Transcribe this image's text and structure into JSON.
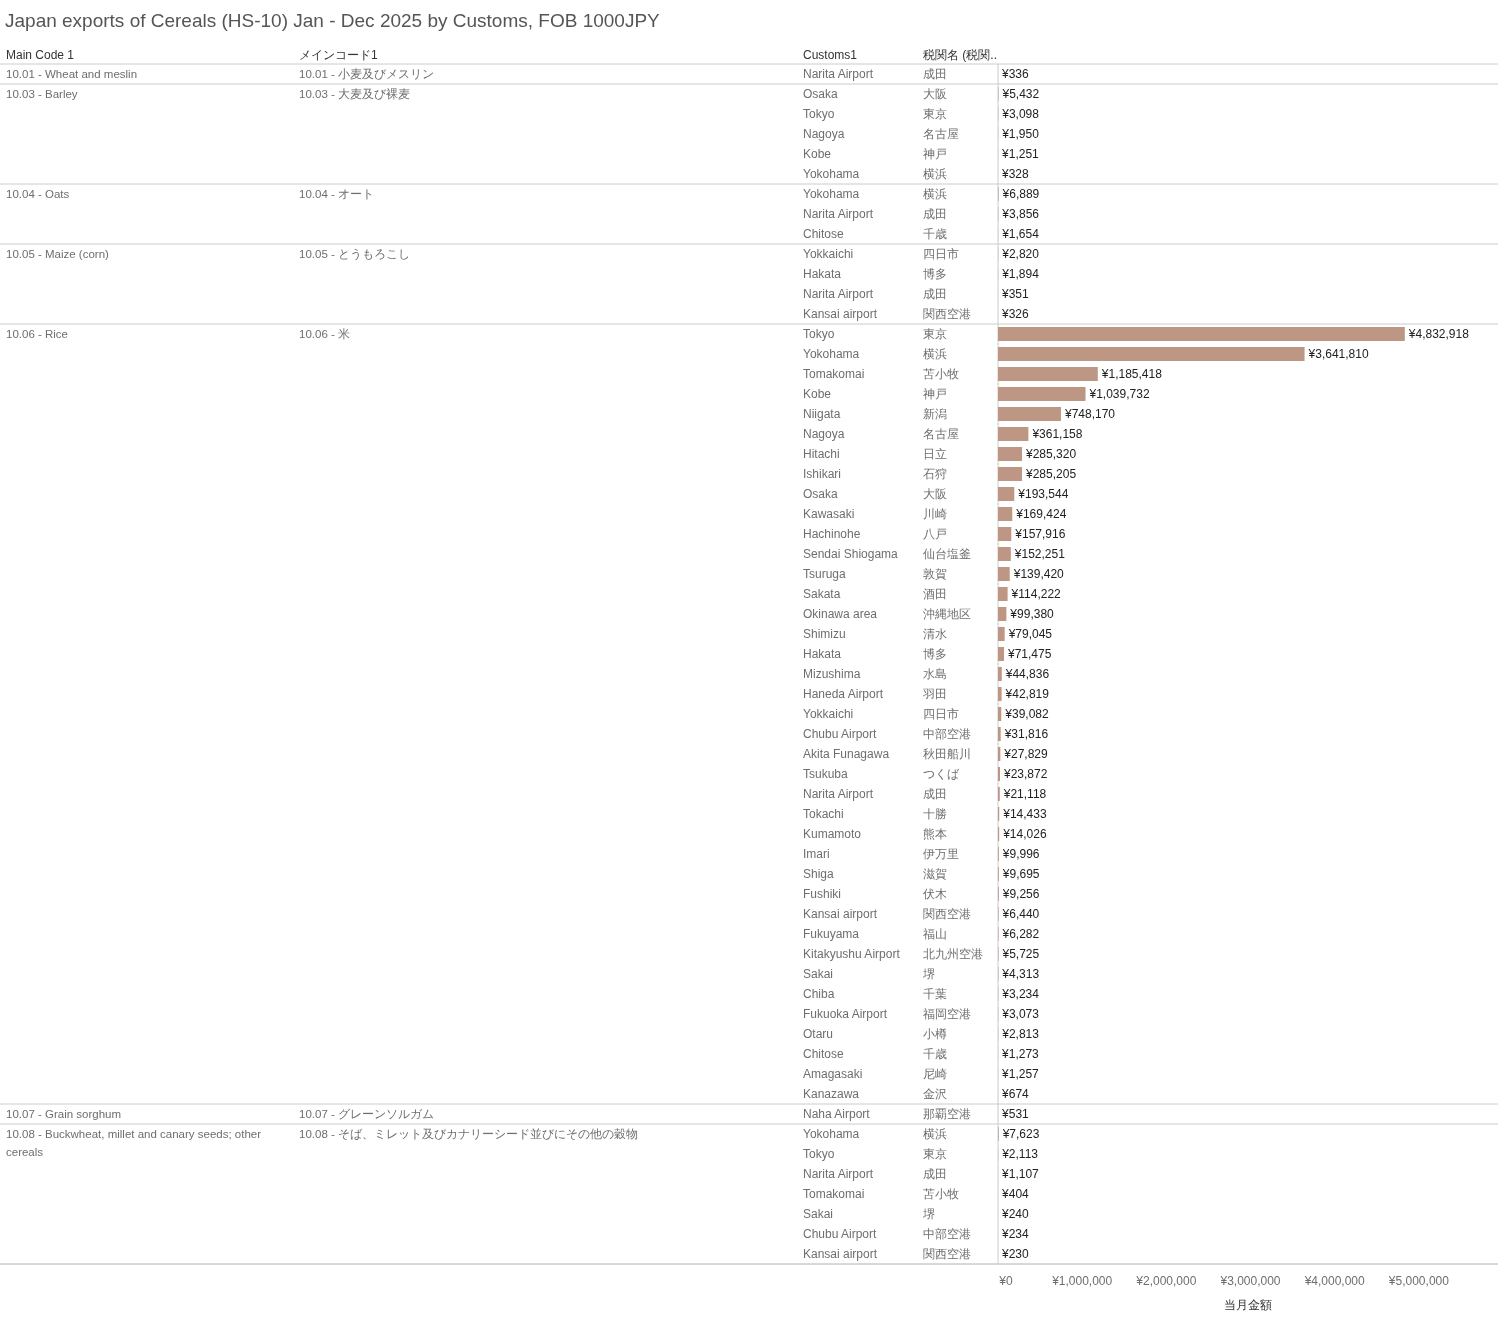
{
  "chart_data": {
    "type": "bar",
    "orientation": "horizontal",
    "title": "Japan exports of Cereals (HS-10) Jan - Dec 2025 by Customs, FOB 1000JPY",
    "xlabel": "当月金額",
    "grid": false,
    "categories": [
      "Narita Airport",
      "Osaka",
      "Tokyo",
      "Nagoya",
      "Kobe",
      "Yokohama",
      "Yokohama",
      "Narita Airport",
      "Chitose",
      "Yokkaichi",
      "Hakata",
      "Narita Airport",
      "Kansai airport",
      "Tokyo",
      "Yokohama",
      "Tomakomai",
      "Kobe",
      "Niigata",
      "Nagoya",
      "Hitachi",
      "Ishikari",
      "Osaka",
      "Kawasaki",
      "Hachinohe",
      "Sendai Shiogama",
      "Tsuruga",
      "Sakata",
      "Okinawa area",
      "Shimizu",
      "Hakata",
      "Mizushima",
      "Haneda Airport",
      "Yokkaichi",
      "Chubu Airport",
      "Akita Funagawa",
      "Tsukuba",
      "Narita Airport",
      "Tokachi",
      "Kumamoto",
      "Imari",
      "Shiga",
      "Fushiki",
      "Kansai airport",
      "Fukuyama",
      "Kitakyushu Airport",
      "Sakai",
      "Chiba",
      "Fukuoka Airport",
      "Otaru",
      "Chitose",
      "Amagasaki",
      "Kanazawa",
      "Naha Airport",
      "Yokohama",
      "Tokyo",
      "Narita Airport",
      "Tomakomai",
      "Sakai",
      "Chubu Airport",
      "Kansai airport"
    ],
    "y2_categories": [
      "成田",
      "大阪",
      "東京",
      "名古屋",
      "神戸",
      "横浜",
      "横浜",
      "成田",
      "千歳",
      "四日市",
      "博多",
      "成田",
      "関西空港",
      "東京",
      "横浜",
      "苫小牧",
      "神戸",
      "新潟",
      "名古屋",
      "日立",
      "石狩",
      "大阪",
      "川崎",
      "八戸",
      "仙台塩釜",
      "敦賀",
      "酒田",
      "沖縄地区",
      "清水",
      "博多",
      "水島",
      "羽田",
      "四日市",
      "中部空港",
      "秋田船川",
      "つくば",
      "成田",
      "十勝",
      "熊本",
      "伊万里",
      "滋賀",
      "伏木",
      "関西空港",
      "福山",
      "北九州空港",
      "堺",
      "千葉",
      "福岡空港",
      "小樽",
      "千歳",
      "尼崎",
      "金沢",
      "那覇空港",
      "横浜",
      "東京",
      "成田",
      "苫小牧",
      "堺",
      "中部空港",
      "関西空港"
    ],
    "annotations": [
      "Main Code 1",
      "メインコード1",
      "Customs1",
      "税関名 (税関..",
      "10.01 - Wheat and meslin",
      "10.01 - 小麦及びメスリン",
      "10.03 - Barley",
      "10.03 - 大麦及び裸麦",
      "10.04 - Oats",
      "10.04 - オート",
      "10.05 - Maize (corn)",
      "10.05 - とうもろこし",
      "10.06 - Rice",
      "10.06 - 米",
      "10.07 - Grain sorghum",
      "10.07 - グレーンソルガム",
      "10.08 - Buckwheat, millet and canary seeds; other cereals",
      "10.08 - そば、ミレット及びカナリーシード並びにその他の穀物"
    ],
    "xlim": [
      0,
      5940000
    ],
    "xticks": [
      {
        "value": 0,
        "label": "¥0"
      },
      {
        "value": 1000000,
        "label": "¥1,000,000"
      },
      {
        "value": 2000000,
        "label": "¥2,000,000"
      },
      {
        "value": 3000000,
        "label": "¥3,000,000"
      },
      {
        "value": 4000000,
        "label": "¥4,000,000"
      },
      {
        "value": 5000000,
        "label": "¥5,000,000"
      }
    ],
    "series": [
      {
        "color": "#bd9784",
        "values": [
          336,
          null,
          null,
          null,
          null,
          null,
          null,
          null,
          null,
          null,
          null,
          null,
          null,
          null,
          null,
          null,
          null,
          null,
          null,
          null,
          null,
          null,
          null,
          null,
          null,
          null,
          null,
          null,
          null,
          null,
          null,
          null,
          null,
          null,
          null,
          null,
          null,
          null,
          null,
          null,
          null,
          null,
          null,
          null,
          null,
          null,
          null,
          null,
          null,
          null,
          null,
          null,
          null,
          null,
          null,
          null,
          null,
          null,
          null,
          null
        ],
        "value_labels": [
          "¥336",
          null,
          null,
          null,
          null,
          null,
          null,
          null,
          null,
          null,
          null,
          null,
          null,
          null,
          null,
          null,
          null,
          null,
          null,
          null,
          null,
          null,
          null,
          null,
          null,
          null,
          null,
          null,
          null,
          null,
          null,
          null,
          null,
          null,
          null,
          null,
          null,
          null,
          null,
          null,
          null,
          null,
          null,
          null,
          null,
          null,
          null,
          null,
          null,
          null,
          null,
          null,
          null,
          null,
          null,
          null,
          null,
          null,
          null,
          null
        ]
      },
      {
        "color": "#bd9784",
        "values": [
          null,
          5432,
          3098,
          1950,
          1251,
          328,
          null,
          null,
          null,
          null,
          null,
          null,
          null,
          null,
          null,
          null,
          null,
          null,
          null,
          null,
          null,
          null,
          null,
          null,
          null,
          null,
          null,
          null,
          null,
          null,
          null,
          null,
          null,
          null,
          null,
          null,
          null,
          null,
          null,
          null,
          null,
          null,
          null,
          null,
          null,
          null,
          null,
          null,
          null,
          null,
          null,
          null,
          null,
          null,
          null,
          null,
          null,
          null,
          null,
          null
        ],
        "value_labels": [
          null,
          "¥5,432",
          "¥3,098",
          "¥1,950",
          "¥1,251",
          "¥328",
          null,
          null,
          null,
          null,
          null,
          null,
          null,
          null,
          null,
          null,
          null,
          null,
          null,
          null,
          null,
          null,
          null,
          null,
          null,
          null,
          null,
          null,
          null,
          null,
          null,
          null,
          null,
          null,
          null,
          null,
          null,
          null,
          null,
          null,
          null,
          null,
          null,
          null,
          null,
          null,
          null,
          null,
          null,
          null,
          null,
          null,
          null,
          null,
          null,
          null,
          null,
          null,
          null,
          null
        ]
      },
      {
        "color": "#bd9784",
        "values": [
          null,
          null,
          null,
          null,
          null,
          null,
          6889,
          3856,
          1654,
          null,
          null,
          null,
          null,
          null,
          null,
          null,
          null,
          null,
          null,
          null,
          null,
          null,
          null,
          null,
          null,
          null,
          null,
          null,
          null,
          null,
          null,
          null,
          null,
          null,
          null,
          null,
          null,
          null,
          null,
          null,
          null,
          null,
          null,
          null,
          null,
          null,
          null,
          null,
          null,
          null,
          null,
          null,
          null,
          null,
          null,
          null,
          null,
          null,
          null,
          null
        ],
        "value_labels": [
          null,
          null,
          null,
          null,
          null,
          null,
          "¥6,889",
          "¥3,856",
          "¥1,654",
          null,
          null,
          null,
          null,
          null,
          null,
          null,
          null,
          null,
          null,
          null,
          null,
          null,
          null,
          null,
          null,
          null,
          null,
          null,
          null,
          null,
          null,
          null,
          null,
          null,
          null,
          null,
          null,
          null,
          null,
          null,
          null,
          null,
          null,
          null,
          null,
          null,
          null,
          null,
          null,
          null,
          null,
          null,
          null,
          null,
          null,
          null,
          null,
          null,
          null,
          null
        ]
      },
      {
        "color": "#bd9784",
        "values": [
          null,
          null,
          null,
          null,
          null,
          null,
          null,
          null,
          null,
          2820,
          1894,
          351,
          326,
          null,
          null,
          null,
          null,
          null,
          null,
          null,
          null,
          null,
          null,
          null,
          null,
          null,
          null,
          null,
          null,
          null,
          null,
          null,
          null,
          null,
          null,
          null,
          null,
          null,
          null,
          null,
          null,
          null,
          null,
          null,
          null,
          null,
          null,
          null,
          null,
          null,
          null,
          null,
          null,
          null,
          null,
          null,
          null,
          null,
          null,
          null
        ],
        "value_labels": [
          null,
          null,
          null,
          null,
          null,
          null,
          null,
          null,
          null,
          "¥2,820",
          "¥1,894",
          "¥351",
          "¥326",
          null,
          null,
          null,
          null,
          null,
          null,
          null,
          null,
          null,
          null,
          null,
          null,
          null,
          null,
          null,
          null,
          null,
          null,
          null,
          null,
          null,
          null,
          null,
          null,
          null,
          null,
          null,
          null,
          null,
          null,
          null,
          null,
          null,
          null,
          null,
          null,
          null,
          null,
          null,
          null,
          null,
          null,
          null,
          null,
          null,
          null,
          null
        ]
      },
      {
        "color": "#bd9784",
        "values": [
          null,
          null,
          null,
          null,
          null,
          null,
          null,
          null,
          null,
          null,
          null,
          null,
          null,
          4832918,
          3641810,
          1185418,
          1039732,
          748170,
          361158,
          285320,
          285205,
          193544,
          169424,
          157916,
          152251,
          139420,
          114222,
          99380,
          79045,
          71475,
          44836,
          42819,
          39082,
          31816,
          27829,
          23872,
          21118,
          14433,
          14026,
          9996,
          9695,
          9256,
          6440,
          6282,
          5725,
          4313,
          3234,
          3073,
          2813,
          1273,
          1257,
          674,
          null,
          null,
          null,
          null,
          null,
          null,
          null,
          null
        ],
        "value_labels": [
          null,
          null,
          null,
          null,
          null,
          null,
          null,
          null,
          null,
          null,
          null,
          null,
          null,
          "¥4,832,918",
          "¥3,641,810",
          "¥1,185,418",
          "¥1,039,732",
          "¥748,170",
          "¥361,158",
          "¥285,320",
          "¥285,205",
          "¥193,544",
          "¥169,424",
          "¥157,916",
          "¥152,251",
          "¥139,420",
          "¥114,222",
          "¥99,380",
          "¥79,045",
          "¥71,475",
          "¥44,836",
          "¥42,819",
          "¥39,082",
          "¥31,816",
          "¥27,829",
          "¥23,872",
          "¥21,118",
          "¥14,433",
          "¥14,026",
          "¥9,996",
          "¥9,695",
          "¥9,256",
          "¥6,440",
          "¥6,282",
          "¥5,725",
          "¥4,313",
          "¥3,234",
          "¥3,073",
          "¥2,813",
          "¥1,273",
          "¥1,257",
          "¥674",
          null,
          null,
          null,
          null,
          null,
          null,
          null,
          null
        ]
      },
      {
        "color": "#bd9784",
        "values": [
          null,
          null,
          null,
          null,
          null,
          null,
          null,
          null,
          null,
          null,
          null,
          null,
          null,
          null,
          null,
          null,
          null,
          null,
          null,
          null,
          null,
          null,
          null,
          null,
          null,
          null,
          null,
          null,
          null,
          null,
          null,
          null,
          null,
          null,
          null,
          null,
          null,
          null,
          null,
          null,
          null,
          null,
          null,
          null,
          null,
          null,
          null,
          null,
          null,
          null,
          null,
          null,
          531,
          null,
          null,
          null,
          null,
          null,
          null,
          null
        ],
        "value_labels": [
          null,
          null,
          null,
          null,
          null,
          null,
          null,
          null,
          null,
          null,
          null,
          null,
          null,
          null,
          null,
          null,
          null,
          null,
          null,
          null,
          null,
          null,
          null,
          null,
          null,
          null,
          null,
          null,
          null,
          null,
          null,
          null,
          null,
          null,
          null,
          null,
          null,
          null,
          null,
          null,
          null,
          null,
          null,
          null,
          null,
          null,
          null,
          null,
          null,
          null,
          null,
          null,
          "¥531",
          null,
          null,
          null,
          null,
          null,
          null,
          null
        ]
      },
      {
        "color": "#bd9784",
        "values": [
          null,
          null,
          null,
          null,
          null,
          null,
          null,
          null,
          null,
          null,
          null,
          null,
          null,
          null,
          null,
          null,
          null,
          null,
          null,
          null,
          null,
          null,
          null,
          null,
          null,
          null,
          null,
          null,
          null,
          null,
          null,
          null,
          null,
          null,
          null,
          null,
          null,
          null,
          null,
          null,
          null,
          null,
          null,
          null,
          null,
          null,
          null,
          null,
          null,
          null,
          null,
          null,
          null,
          7623,
          2113,
          1107,
          404,
          240,
          234,
          230
        ],
        "value_labels": [
          null,
          null,
          null,
          null,
          null,
          null,
          null,
          null,
          null,
          null,
          null,
          null,
          null,
          null,
          null,
          null,
          null,
          null,
          null,
          null,
          null,
          null,
          null,
          null,
          null,
          null,
          null,
          null,
          null,
          null,
          null,
          null,
          null,
          null,
          null,
          null,
          null,
          null,
          null,
          null,
          null,
          null,
          null,
          null,
          null,
          null,
          null,
          null,
          null,
          null,
          null,
          null,
          null,
          "¥7,623",
          "¥2,113",
          "¥1,107",
          "¥404",
          "¥240",
          "¥234",
          "¥230"
        ]
      }
    ]
  }
}
